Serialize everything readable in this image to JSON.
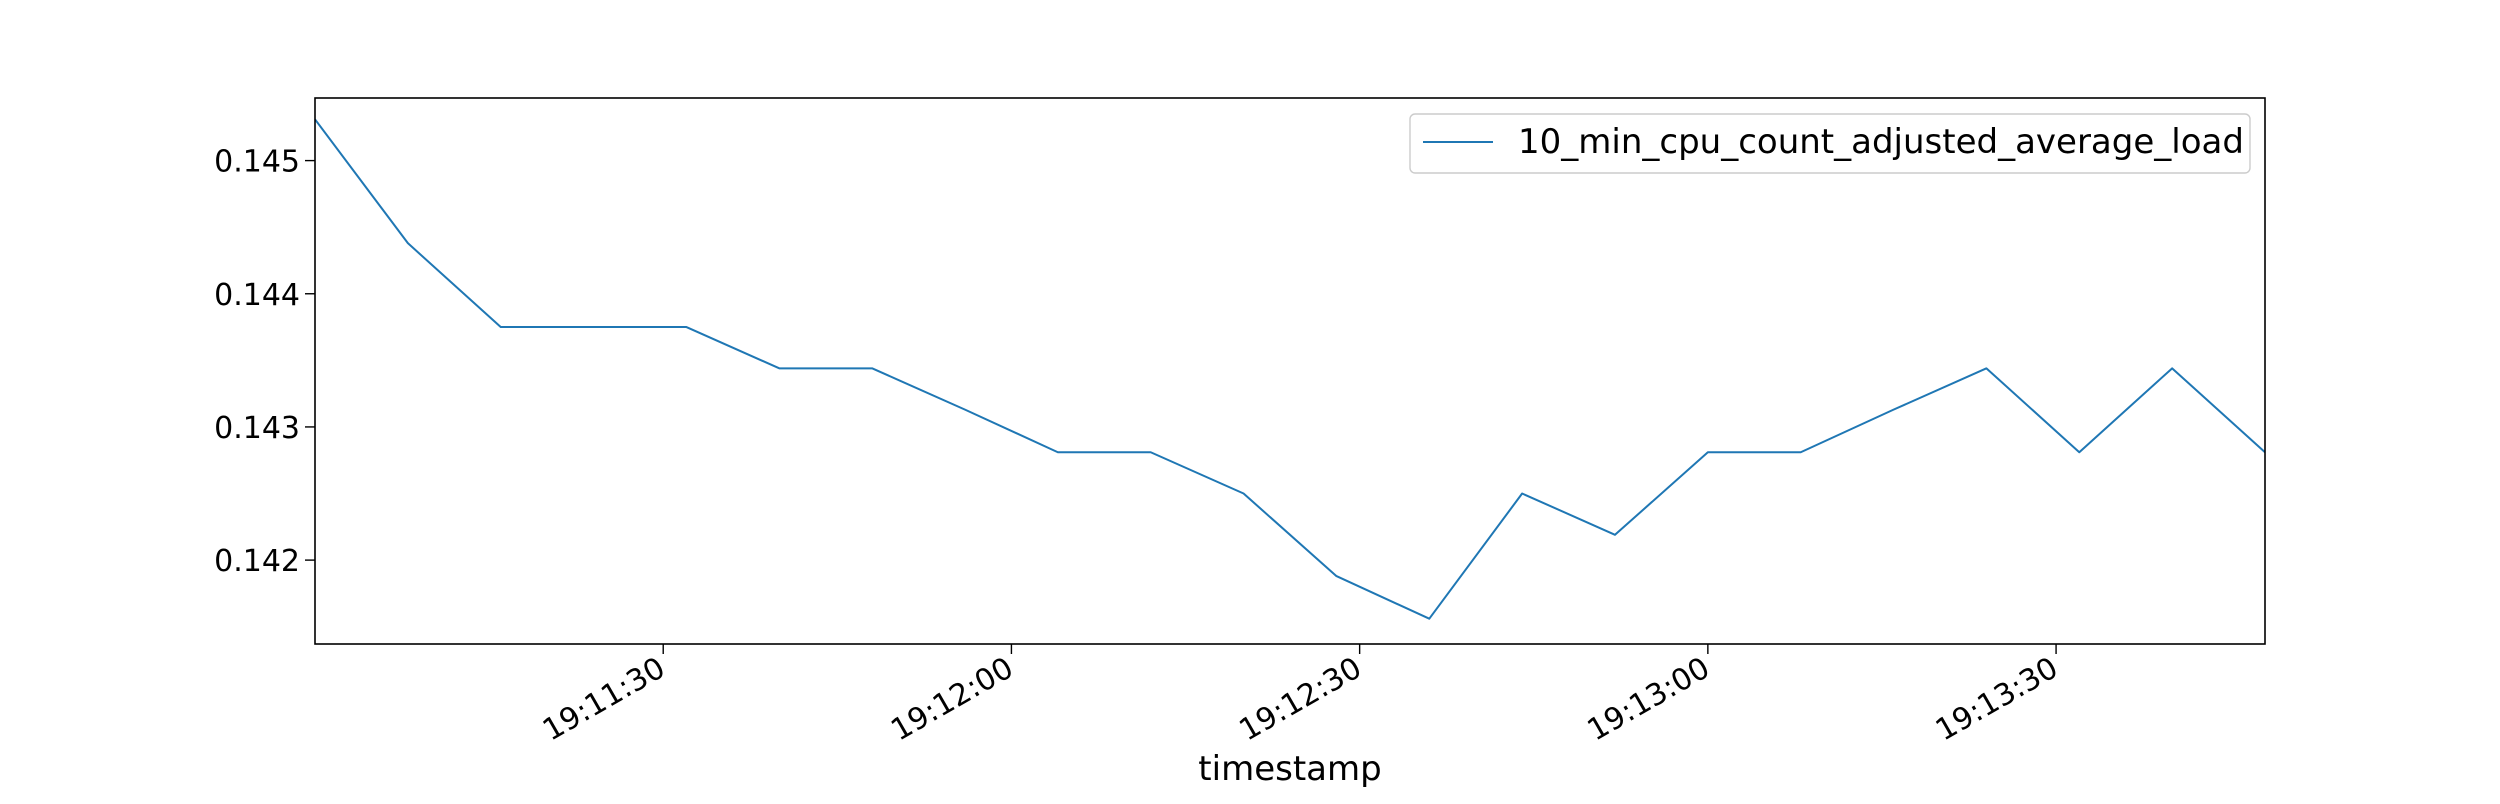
{
  "chart_data": {
    "type": "line",
    "title": "",
    "xlabel": "timestamp",
    "ylabel": "",
    "x_tick_labels": [
      "19:11:30",
      "19:12:00",
      "19:12:30",
      "19:13:00",
      "19:13:30"
    ],
    "y_tick_labels": [
      "0.142",
      "0.143",
      "0.144",
      "0.145"
    ],
    "xlim": [
      "19:11:00",
      "19:13:48"
    ],
    "ylim": [
      0.14137,
      0.14547
    ],
    "grid": false,
    "legend_position": "top-right",
    "series": [
      {
        "name": "10_min_cpu_count_adjusted_average_load",
        "color": "#1f77b4",
        "x": [
          "19:11:00",
          "19:11:08",
          "19:11:16",
          "19:11:24",
          "19:11:32",
          "19:11:40",
          "19:11:48",
          "19:11:56",
          "19:12:04",
          "19:12:12",
          "19:12:20",
          "19:12:28",
          "19:12:36",
          "19:12:44",
          "19:12:52",
          "19:13:00",
          "19:13:08",
          "19:13:16",
          "19:13:24",
          "19:13:32",
          "19:13:40",
          "19:13:48"
        ],
        "values": [
          0.14531,
          0.14438,
          0.14375,
          0.14375,
          0.14375,
          0.14344,
          0.14344,
          0.14313,
          0.14281,
          0.14281,
          0.1425,
          0.14188,
          0.14156,
          0.1425,
          0.14219,
          0.14281,
          0.14281,
          0.14313,
          0.14344,
          0.14281,
          0.14344,
          0.14281
        ]
      }
    ]
  }
}
